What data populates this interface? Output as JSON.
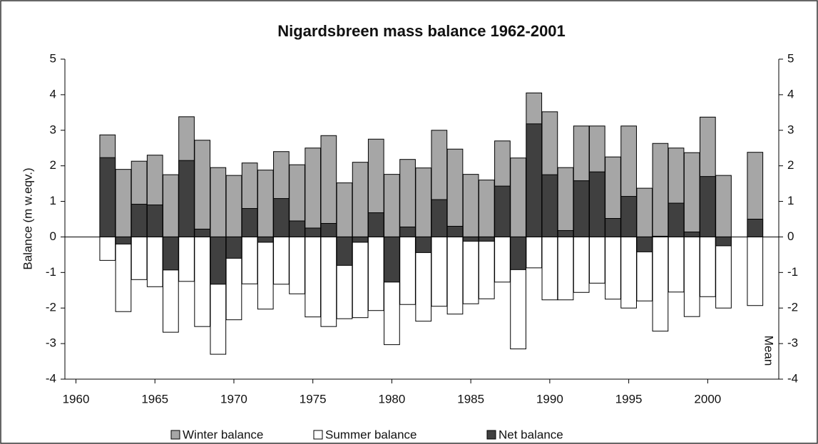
{
  "chart_data": {
    "type": "bar",
    "title": "Nigardsbreen mass balance 1962-2001",
    "y_label": "Balance (m w.eqv.)",
    "x": [
      1962,
      1963,
      1964,
      1965,
      1966,
      1967,
      1968,
      1969,
      1970,
      1971,
      1972,
      1973,
      1974,
      1975,
      1976,
      1977,
      1978,
      1979,
      1980,
      1981,
      1982,
      1983,
      1984,
      1985,
      1986,
      1987,
      1988,
      1989,
      1990,
      1991,
      1992,
      1993,
      1994,
      1995,
      1996,
      1997,
      1998,
      1999,
      2000,
      2001
    ],
    "series": [
      {
        "name": "Winter balance",
        "color": "#a6a6a6",
        "values": [
          2.87,
          1.9,
          2.13,
          2.3,
          1.75,
          3.38,
          2.72,
          1.95,
          1.73,
          2.08,
          1.88,
          2.4,
          2.03,
          2.5,
          2.85,
          1.52,
          2.1,
          2.75,
          1.76,
          2.18,
          1.94,
          3.0,
          2.47,
          1.76,
          1.6,
          2.7,
          2.22,
          4.05,
          3.52,
          1.95,
          3.12,
          3.12,
          2.25,
          3.12,
          1.37,
          2.63,
          2.5,
          2.37,
          3.37,
          1.73
        ]
      },
      {
        "name": "Summer balance",
        "color": "#ffffff",
        "values": [
          -0.66,
          -2.1,
          -1.2,
          -1.4,
          -2.68,
          -1.25,
          -2.52,
          -3.3,
          -2.33,
          -1.32,
          -2.03,
          -1.33,
          -1.6,
          -2.25,
          -2.52,
          -2.3,
          -2.27,
          -2.07,
          -3.03,
          -1.9,
          -2.37,
          -1.95,
          -2.17,
          -1.88,
          -1.74,
          -1.27,
          -3.15,
          -0.87,
          -1.77,
          -1.77,
          -1.56,
          -1.3,
          -1.75,
          -2.0,
          -1.8,
          -2.65,
          -1.55,
          -2.24,
          -1.68,
          -2.0
        ]
      },
      {
        "name": "Net balance",
        "color": "#404040",
        "values": [
          2.23,
          -0.2,
          0.92,
          0.9,
          -0.93,
          2.15,
          0.22,
          -1.33,
          -0.6,
          0.8,
          -0.15,
          1.08,
          0.45,
          0.25,
          0.38,
          -0.8,
          -0.15,
          0.68,
          -1.27,
          0.28,
          -0.44,
          1.05,
          0.3,
          -0.12,
          -0.12,
          1.43,
          -0.92,
          3.18,
          1.75,
          0.18,
          1.58,
          1.83,
          0.52,
          1.14,
          -0.42,
          0.02,
          0.95,
          0.14,
          1.7,
          -0.25
        ]
      }
    ],
    "mean": {
      "label": "Mean",
      "x": 2003,
      "values": [
        2.38,
        -1.93,
        0.5
      ]
    },
    "xlim": [
      1959.3,
      2004.5
    ],
    "xticks": [
      1960,
      1965,
      1970,
      1975,
      1980,
      1985,
      1990,
      1995,
      2000
    ],
    "ylim": [
      -4,
      5
    ],
    "yticks": [
      -4,
      -3,
      -2,
      -1,
      0,
      1,
      2,
      3,
      4,
      5
    ],
    "legend": "bottom"
  }
}
